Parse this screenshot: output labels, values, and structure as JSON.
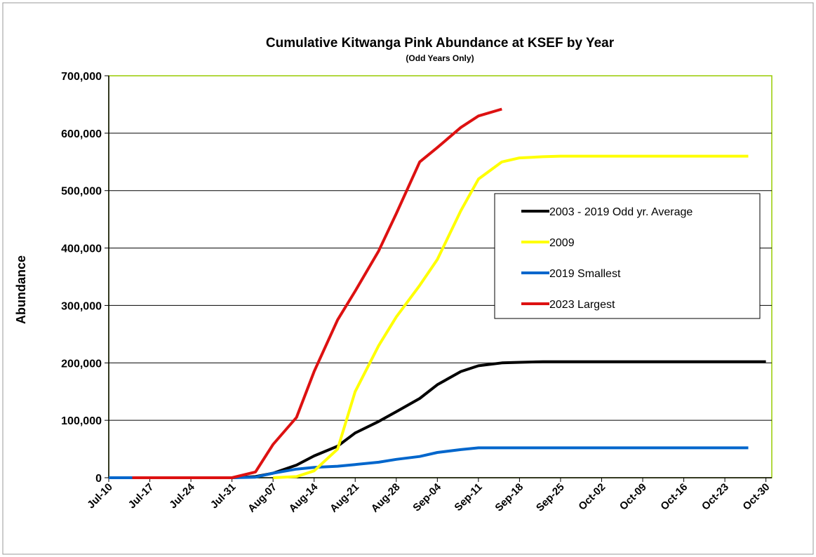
{
  "chart_data": {
    "type": "line",
    "title": "Cumulative Kitwanga Pink Abundance at KSEF by Year",
    "subtitle": "(Odd Years Only)",
    "y_label": "Abundance",
    "x": [
      "Jul-10",
      "Jul-14",
      "Jul-17",
      "Jul-21",
      "Jul-24",
      "Jul-28",
      "Jul-31",
      "Aug-04",
      "Aug-07",
      "Aug-11",
      "Aug-14",
      "Aug-18",
      "Aug-21",
      "Aug-25",
      "Aug-28",
      "Sep-01",
      "Sep-04",
      "Sep-08",
      "Sep-11",
      "Sep-15",
      "Sep-18",
      "Sep-22",
      "Sep-25",
      "Sep-29",
      "Oct-02",
      "Oct-06",
      "Oct-09",
      "Oct-13",
      "Oct-16",
      "Oct-20",
      "Oct-23",
      "Oct-27",
      "Oct-30"
    ],
    "xlim": [
      "Jul-10",
      "Oct-31"
    ],
    "xticks": [
      "Jul-10",
      "Jul-17",
      "Jul-24",
      "Jul-31",
      "Aug-07",
      "Aug-14",
      "Aug-21",
      "Aug-28",
      "Sep-04",
      "Sep-11",
      "Sep-18",
      "Sep-25",
      "Oct-02",
      "Oct-09",
      "Oct-16",
      "Oct-23",
      "Oct-30"
    ],
    "ylim": [
      0,
      700000
    ],
    "yticks": [
      0,
      {
        "value": 100000,
        "label": "100,000"
      },
      {
        "value": 200000,
        "label": "200,000"
      },
      {
        "value": 300000,
        "label": "300,000"
      },
      {
        "value": 400000,
        "label": "400,000"
      },
      {
        "value": 500000,
        "label": "500,000"
      },
      {
        "value": 600000,
        "label": "600,000"
      },
      {
        "value": 700000,
        "label": "700,000"
      }
    ],
    "grid": true,
    "legend": "right",
    "series": [
      {
        "name": "2003 - 2019 Odd yr. Average",
        "color": "#000000",
        "values": [
          null,
          null,
          null,
          null,
          null,
          null,
          0,
          2000,
          8000,
          22000,
          38000,
          55000,
          78000,
          98000,
          115000,
          138000,
          162000,
          185000,
          195000,
          200000,
          201000,
          202000,
          202000,
          202000,
          202000,
          202000,
          202000,
          202000,
          202000,
          202000,
          202000,
          202000,
          202000
        ]
      },
      {
        "name": "2009",
        "color": "#ffff00",
        "values": [
          null,
          null,
          null,
          null,
          null,
          null,
          null,
          null,
          0,
          2000,
          12000,
          50000,
          150000,
          230000,
          280000,
          335000,
          380000,
          465000,
          520000,
          550000,
          557000,
          559000,
          560000,
          560000,
          560000,
          560000,
          560000,
          560000,
          560000,
          560000,
          560000,
          560000,
          null
        ]
      },
      {
        "name": "2019 Smallest",
        "color": "#0066cc",
        "values": [
          0,
          0,
          0,
          0,
          0,
          0,
          0,
          1000,
          8000,
          15000,
          18000,
          20000,
          23000,
          27000,
          32000,
          37000,
          44000,
          49000,
          52000,
          52000,
          52000,
          52000,
          52000,
          52000,
          52000,
          52000,
          52000,
          52000,
          52000,
          52000,
          52000,
          52000,
          null
        ]
      },
      {
        "name": "2023 Largest",
        "color": "#dd1111",
        "values": [
          null,
          0,
          0,
          0,
          0,
          0,
          0,
          10000,
          58000,
          105000,
          185000,
          275000,
          325000,
          395000,
          460000,
          550000,
          575000,
          610000,
          630000,
          642000,
          null,
          null,
          null,
          null,
          null,
          null,
          null,
          null,
          null,
          null,
          null,
          null,
          null
        ]
      }
    ]
  }
}
